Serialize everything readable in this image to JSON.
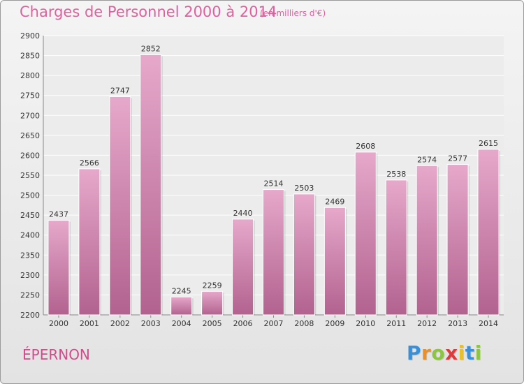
{
  "chart_data": {
    "type": "bar",
    "title": "Charges de Personnel 2000 à 2014",
    "subtitle": "(en milliers d'€)",
    "categories": [
      "2000",
      "2001",
      "2002",
      "2003",
      "2004",
      "2005",
      "2006",
      "2007",
      "2008",
      "2009",
      "2010",
      "2011",
      "2012",
      "2013",
      "2014"
    ],
    "values": [
      2437,
      2566,
      2747,
      2852,
      2245,
      2259,
      2440,
      2514,
      2503,
      2469,
      2608,
      2538,
      2574,
      2577,
      2615
    ],
    "ylim": [
      2200,
      2900
    ],
    "yticks": [
      2200,
      2250,
      2300,
      2350,
      2400,
      2450,
      2500,
      2550,
      2600,
      2650,
      2700,
      2750,
      2800,
      2850,
      2900
    ],
    "grid": true,
    "colors": {
      "bar_light": "#e6a8cb",
      "bar_dark": "#b2628f",
      "title": "#e0609e"
    }
  },
  "footer": {
    "city": "ÉPERNON",
    "logo": {
      "letters": [
        "P",
        "r",
        "o",
        "x",
        "i",
        "t",
        "i"
      ],
      "colors": [
        "#3a8fd9",
        "#e8902c",
        "#8cc63f",
        "#e03a3a",
        "#e8c02c",
        "#3a8fd9",
        "#8cc63f"
      ]
    }
  }
}
